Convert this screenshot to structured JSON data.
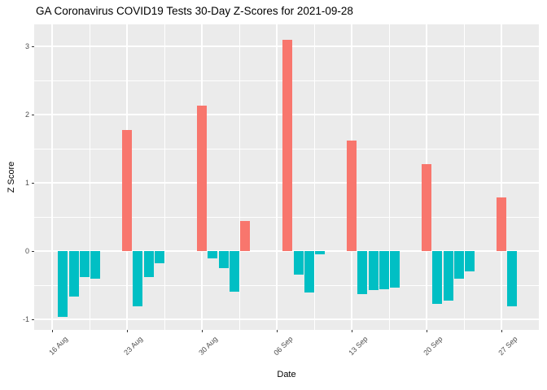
{
  "title": "GA Coronavirus COVID19 Tests 30-Day Z-Scores for 2021-09-28",
  "chart_data": {
    "type": "bar",
    "title": "GA Coronavirus COVID19 Tests 30-Day Z-Scores for 2021-09-28",
    "xlabel": "Date",
    "ylabel": "Z Score",
    "ylim": [
      -1.17,
      3.32
    ],
    "grid": true,
    "legend": false,
    "panel_bg": "#EBEBEB",
    "grid_color": "#FFFFFF",
    "colors": {
      "positive": "#F8766D",
      "negative": "#00BFC4"
    },
    "y_ticks": [
      -1,
      0,
      1,
      2,
      3
    ],
    "y_minor_ticks": [
      -0.5,
      0.5,
      1.5,
      2.5
    ],
    "x_ticks": [
      {
        "date": "2021-08-16",
        "label": "16 Aug"
      },
      {
        "date": "2021-08-23",
        "label": "23 Aug"
      },
      {
        "date": "2021-08-30",
        "label": "30 Aug"
      },
      {
        "date": "2021-09-06",
        "label": "06 Sep"
      },
      {
        "date": "2021-09-13",
        "label": "13 Sep"
      },
      {
        "date": "2021-09-20",
        "label": "20 Sep"
      },
      {
        "date": "2021-09-27",
        "label": "27 Sep"
      }
    ],
    "points": [
      {
        "date": "2021-08-17",
        "z": -0.96
      },
      {
        "date": "2021-08-18",
        "z": -0.67
      },
      {
        "date": "2021-08-19",
        "z": -0.38
      },
      {
        "date": "2021-08-20",
        "z": -0.4
      },
      {
        "date": "2021-08-23",
        "z": 1.77
      },
      {
        "date": "2021-08-24",
        "z": -0.81
      },
      {
        "date": "2021-08-25",
        "z": -0.38
      },
      {
        "date": "2021-08-26",
        "z": -0.18
      },
      {
        "date": "2021-08-30",
        "z": 2.13
      },
      {
        "date": "2021-08-31",
        "z": -0.11
      },
      {
        "date": "2021-09-01",
        "z": -0.25
      },
      {
        "date": "2021-09-02",
        "z": -0.59
      },
      {
        "date": "2021-09-03",
        "z": 0.44
      },
      {
        "date": "2021-09-07",
        "z": 3.1
      },
      {
        "date": "2021-09-08",
        "z": -0.35
      },
      {
        "date": "2021-09-09",
        "z": -0.61
      },
      {
        "date": "2021-09-10",
        "z": -0.05
      },
      {
        "date": "2021-09-13",
        "z": 1.62
      },
      {
        "date": "2021-09-14",
        "z": -0.63
      },
      {
        "date": "2021-09-15",
        "z": -0.57
      },
      {
        "date": "2021-09-16",
        "z": -0.56
      },
      {
        "date": "2021-09-17",
        "z": -0.54
      },
      {
        "date": "2021-09-20",
        "z": 1.27
      },
      {
        "date": "2021-09-21",
        "z": -0.77
      },
      {
        "date": "2021-09-22",
        "z": -0.73
      },
      {
        "date": "2021-09-23",
        "z": -0.41
      },
      {
        "date": "2021-09-24",
        "z": -0.3
      },
      {
        "date": "2021-09-27",
        "z": 0.78
      },
      {
        "date": "2021-09-28",
        "z": -0.81
      }
    ]
  }
}
